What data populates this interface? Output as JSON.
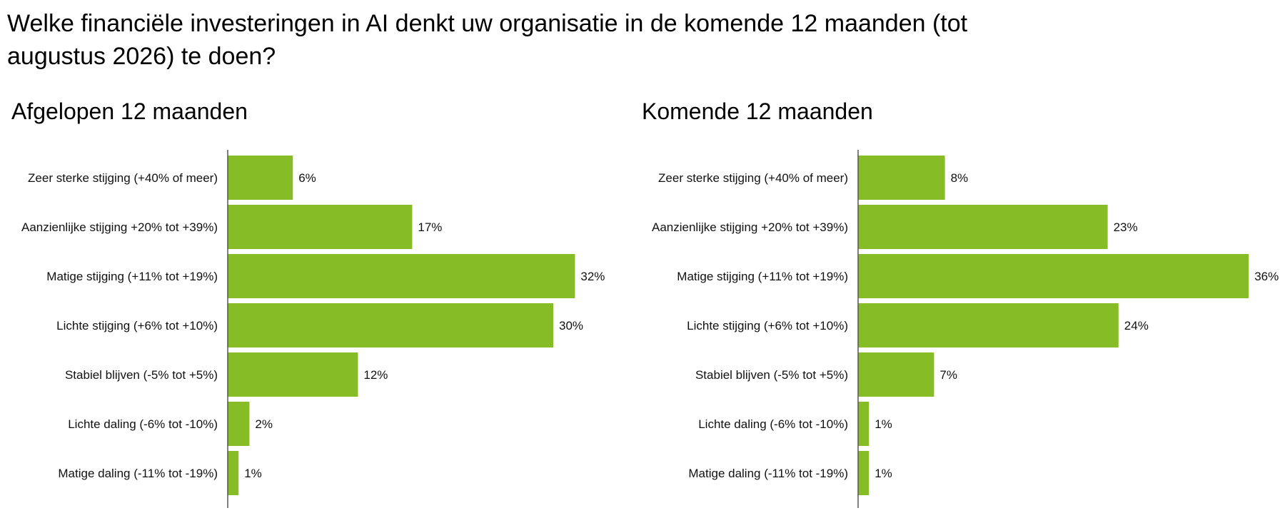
{
  "title": "Welke financiële investeringen in AI denkt uw organisatie in de komende 12 maanden (tot augustus 2026) te doen?",
  "colors": {
    "bar": "#86bc25",
    "axis": "#555555"
  },
  "chart_data": [
    {
      "type": "bar",
      "orientation": "horizontal",
      "title": "Afgelopen 12 maanden",
      "categories": [
        "Zeer sterke stijging (+40% of meer)",
        "Aanzienlijke stijging +20% tot +39%)",
        "Matige stijging (+11% tot +19%)",
        "Lichte stijging (+6% tot +10%)",
        "Stabiel blijven (-5% tot +5%)",
        "Lichte daling (-6% tot -10%)",
        "Matige daling (-11% tot -19%)"
      ],
      "values": [
        6,
        17,
        32,
        30,
        12,
        2,
        1
      ],
      "labels": [
        "6%",
        "17%",
        "32%",
        "30%",
        "12%",
        "2%",
        "1%"
      ],
      "unit": "%",
      "grid": false
    },
    {
      "type": "bar",
      "orientation": "horizontal",
      "title": "Komende 12 maanden",
      "categories": [
        "Zeer sterke stijging (+40% of meer)",
        "Aanzienlijke stijging +20% tot +39%)",
        "Matige stijging (+11% tot +19%)",
        "Lichte stijging (+6% tot +10%)",
        "Stabiel blijven (-5% tot +5%)",
        "Lichte daling (-6% tot -10%)",
        "Matige daling (-11% tot -19%)"
      ],
      "values": [
        8,
        23,
        36,
        24,
        7,
        1,
        1
      ],
      "labels": [
        "8%",
        "23%",
        "36%",
        "24%",
        "7%",
        "1%",
        "1%"
      ],
      "unit": "%",
      "grid": false
    }
  ]
}
